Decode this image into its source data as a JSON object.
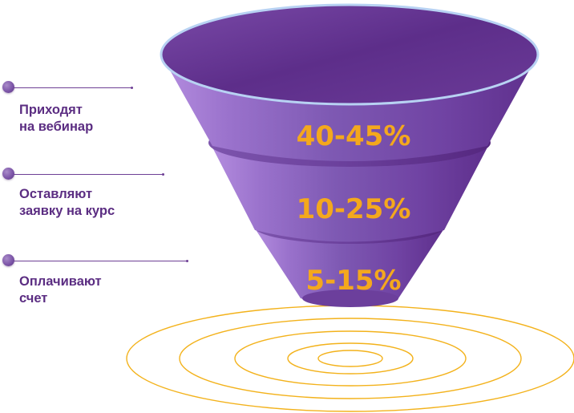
{
  "colors": {
    "funnel_top": "#6a3d98",
    "funnel_body": "#7b52ad",
    "funnel_light": "#a57fd3",
    "percent": "#f4a81d",
    "ring": "#f3b21b",
    "label": "#5b2d82"
  },
  "stages": [
    {
      "label": "Приходят\nна вебинар",
      "value": "40-45%"
    },
    {
      "label": "Оставляют\nзаявку на курс",
      "value": "10-25%"
    },
    {
      "label": "Оплачивают\nсчет",
      "value": "5-15%"
    }
  ]
}
